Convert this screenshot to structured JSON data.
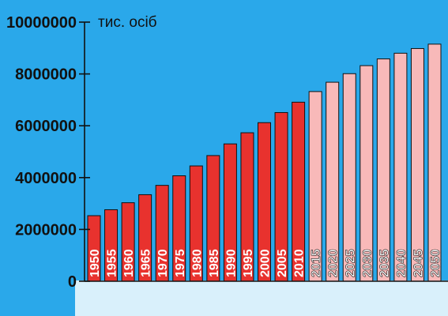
{
  "chart_data": {
    "type": "bar",
    "title": "",
    "xlabel": "",
    "ylabel": "тис. осіб",
    "ylim": [
      0,
      10000000
    ],
    "y_ticks": [
      "0",
      "2000000",
      "4000000",
      "6000000",
      "8000000",
      "10000000"
    ],
    "categories": [
      "1950",
      "1955",
      "1960",
      "1965",
      "1970",
      "1975",
      "1980",
      "1985",
      "1990",
      "1995",
      "2000",
      "2005",
      "2010",
      "2015",
      "2020",
      "2025",
      "2030",
      "2035",
      "2040",
      "2045",
      "2050"
    ],
    "values": [
      2530000,
      2760000,
      3030000,
      3340000,
      3700000,
      4070000,
      4450000,
      4850000,
      5300000,
      5730000,
      6120000,
      6510000,
      6910000,
      7320000,
      7680000,
      8010000,
      8320000,
      8580000,
      8800000,
      8980000,
      9150000
    ],
    "series_split": {
      "actual_until": "2010",
      "projected_from": "2015"
    },
    "colors": {
      "background": "#2aa8ea",
      "actual_bar": "#e8322e",
      "projected_bar": "#f8b9b9",
      "axis": "#111111",
      "label_text": "#ffffff"
    },
    "grid": false
  }
}
